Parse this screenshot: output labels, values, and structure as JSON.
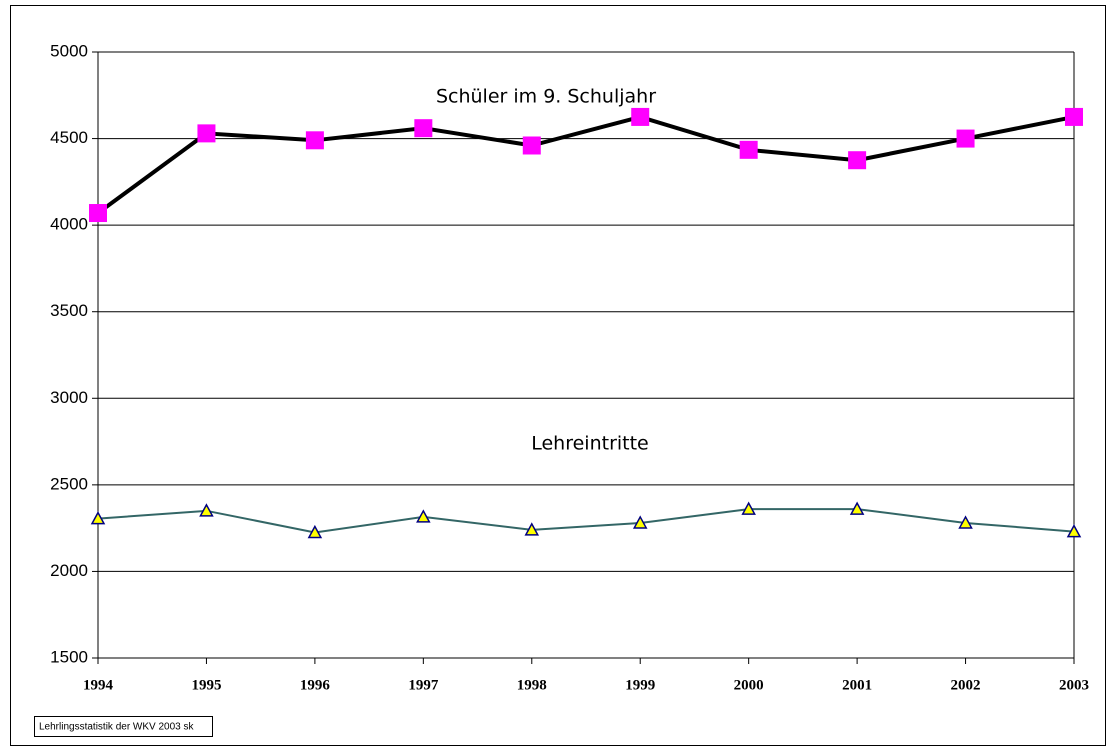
{
  "chart_data": {
    "type": "line",
    "categories": [
      "1994",
      "1995",
      "1996",
      "1997",
      "1998",
      "1999",
      "2000",
      "2001",
      "2002",
      "2003"
    ],
    "series": [
      {
        "name": "Schüler im 9. Schuljahr",
        "color": "#000000",
        "marker_color": "#ff00ff",
        "marker": "square",
        "values": [
          4070,
          4530,
          4490,
          4560,
          4460,
          4625,
          4435,
          4375,
          4500,
          4625
        ]
      },
      {
        "name": "Lehreintritte",
        "color": "#336666",
        "marker_color": "#ffff00",
        "marker": "triangle",
        "values": [
          2305,
          2350,
          2225,
          2315,
          2240,
          2280,
          2360,
          2360,
          2280,
          2230
        ]
      }
    ],
    "ylim": [
      1500,
      5000
    ],
    "yticks": [
      1500,
      2000,
      2500,
      3000,
      3500,
      4000,
      4500,
      5000
    ],
    "grid": true,
    "footnote": "Lehrlingsstatistik der WKV 2003 sk"
  }
}
